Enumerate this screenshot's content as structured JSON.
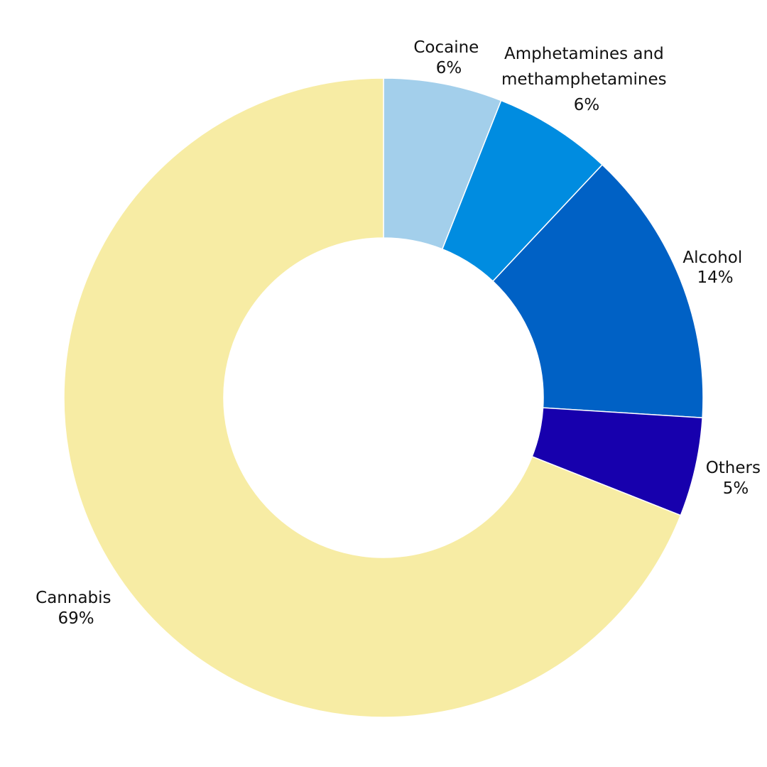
{
  "chart_data": {
    "type": "pie",
    "variant": "donut",
    "title": "",
    "slices": [
      {
        "label": "Cocaine",
        "value": 6,
        "value_label": "6%",
        "color": "#a3cfeb"
      },
      {
        "label": "Amphetamines and methamphetamines",
        "label_lines": [
          "Amphetamines and",
          "methamphetamines"
        ],
        "value": 6,
        "value_label": "6%",
        "color": "#008ce0"
      },
      {
        "label": "Alcohol",
        "value": 14,
        "value_label": "14%",
        "color": "#0061c5"
      },
      {
        "label": "Others",
        "value": 5,
        "value_label": "5%",
        "color": "#1700ad"
      },
      {
        "label": "Cannabis",
        "value": 69,
        "value_label": "69%",
        "color": "#f7eca4"
      }
    ],
    "legend": "none"
  }
}
